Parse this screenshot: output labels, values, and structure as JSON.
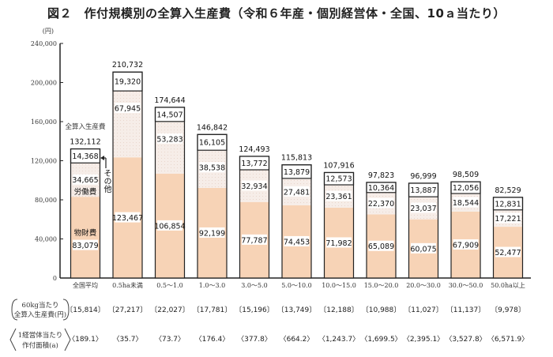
{
  "chart_data": {
    "type": "bar",
    "stacked": true,
    "title": "図２　作付規模別の全算入生産費（令和６年産・個別経営体・全国、10ａ当たり）",
    "ylabel": "(円)",
    "ylim": [
      0,
      240000
    ],
    "yticks": [
      "0",
      "40,000",
      "80,000",
      "120,000",
      "160,000",
      "200,000",
      "240,000"
    ],
    "categories": [
      "全国平均",
      "0.5ha未満",
      "0.5～1.0",
      "1.0～3.0",
      "3.0～5.0",
      "5.0～10.0",
      "10.0～15.0",
      "15.0～20.0",
      "20.0～30.0",
      "30.0～50.0",
      "50.0ha以上"
    ],
    "series": [
      {
        "name": "物財費",
        "color": "#f7d3b6",
        "values": [
          83079,
          123467,
          106854,
          92199,
          77787,
          74453,
          71982,
          65089,
          60075,
          67909,
          52477
        ]
      },
      {
        "name": "労働費",
        "color": "#f6ede8",
        "values": [
          34665,
          67945,
          53283,
          38538,
          32934,
          27481,
          23361,
          22370,
          23037,
          18544,
          17221
        ]
      },
      {
        "name": "その他",
        "color": "#ffffff",
        "values": [
          14368,
          19320,
          14507,
          16105,
          13772,
          13879,
          12573,
          10364,
          13887,
          12056,
          12831
        ]
      }
    ],
    "segment_labels": [
      [
        "83,079",
        "123,467",
        "106,854",
        "92,199",
        "77,787",
        "74,453",
        "71,982",
        "65,089",
        "60,075",
        "67,909",
        "52,477"
      ],
      [
        "34,665",
        "67,945",
        "53,283",
        "38,538",
        "32,934",
        "27,481",
        "23,361",
        "22,370",
        "23,037",
        "18,544",
        "17,221"
      ],
      [
        "14,368",
        "19,320",
        "14,507",
        "16,105",
        "13,772",
        "13,879",
        "12,573",
        "10,364",
        "13,887",
        "12,056",
        "12,831"
      ]
    ],
    "totals": [
      "132,112",
      "210,732",
      "174,644",
      "146,842",
      "124,493",
      "115,813",
      "107,916",
      "97,823",
      "96,999",
      "98,509",
      "82,529"
    ],
    "total_label": "全算入生産費",
    "other_annotation": "その他"
  },
  "table": {
    "row1_label": [
      "60kg当たり",
      "全算入生産費(円)"
    ],
    "row1_values": [
      "〔15,814〕",
      "〔27,217〕",
      "〔22,027〕",
      "〔17,781〕",
      "〔15,196〕",
      "〔13,749〕",
      "〔12,188〕",
      "〔10,988〕",
      "〔11,027〕",
      "〔11,137〕",
      "〔9,978〕"
    ],
    "row2_label": [
      "1経営体当たり",
      "作付面積(a)"
    ],
    "row2_values": [
      "〈189.1〉",
      "〈35.7〉",
      "〈73.7〉",
      "〈176.4〉",
      "〈377.8〉",
      "〈664.2〉",
      "〈1,243.7〉",
      "〈1,699.5〉",
      "〈2,395.1〉",
      "〈3,527.8〉",
      "〈6,571.9〉"
    ]
  }
}
